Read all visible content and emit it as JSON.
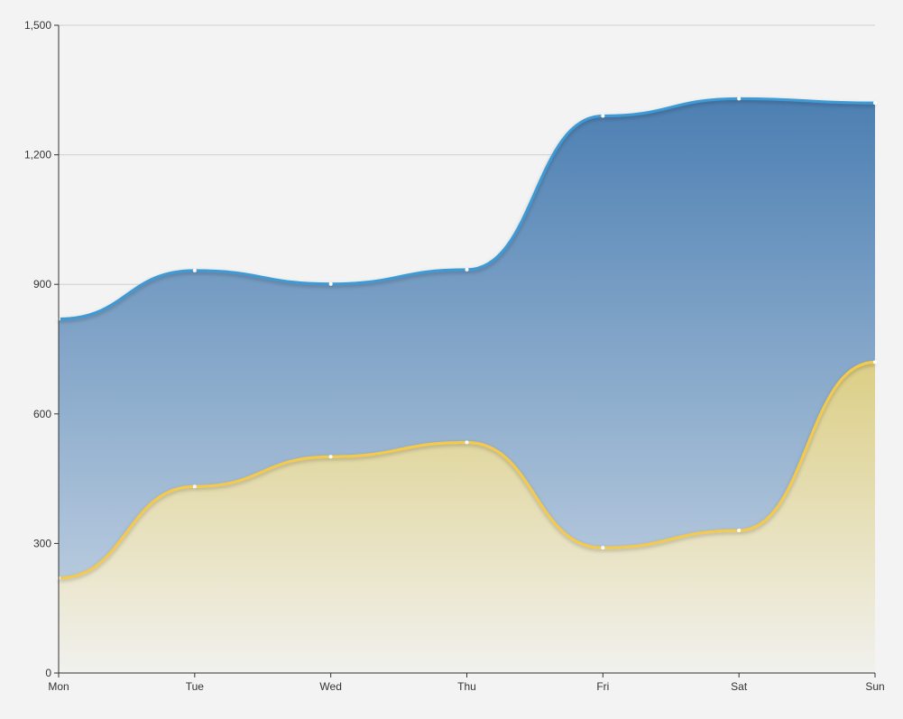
{
  "chart_data": {
    "type": "area",
    "title": "",
    "xlabel": "",
    "ylabel": "",
    "categories": [
      "Mon",
      "Tue",
      "Wed",
      "Thu",
      "Fri",
      "Sat",
      "Sun"
    ],
    "ylim": [
      0,
      1500
    ],
    "yticks": [
      0,
      300,
      600,
      900,
      1200,
      1500
    ],
    "ytick_labels": [
      "0",
      "300",
      "600",
      "900",
      "1,200",
      "1,500"
    ],
    "grid": true,
    "legend": false,
    "smooth": true,
    "series": [
      {
        "values": [
          820,
          932,
          901,
          934,
          1290,
          1330,
          1320
        ],
        "line_color": "#3c9ad4",
        "fill_top": "#4c7fb2",
        "fill_bottom": "#cbd8e6"
      },
      {
        "values": [
          220,
          432,
          501,
          534,
          290,
          330,
          720
        ],
        "line_color": "#f5c94a",
        "fill_top": "#dcce85",
        "fill_bottom": "#f1f1ee"
      }
    ]
  }
}
